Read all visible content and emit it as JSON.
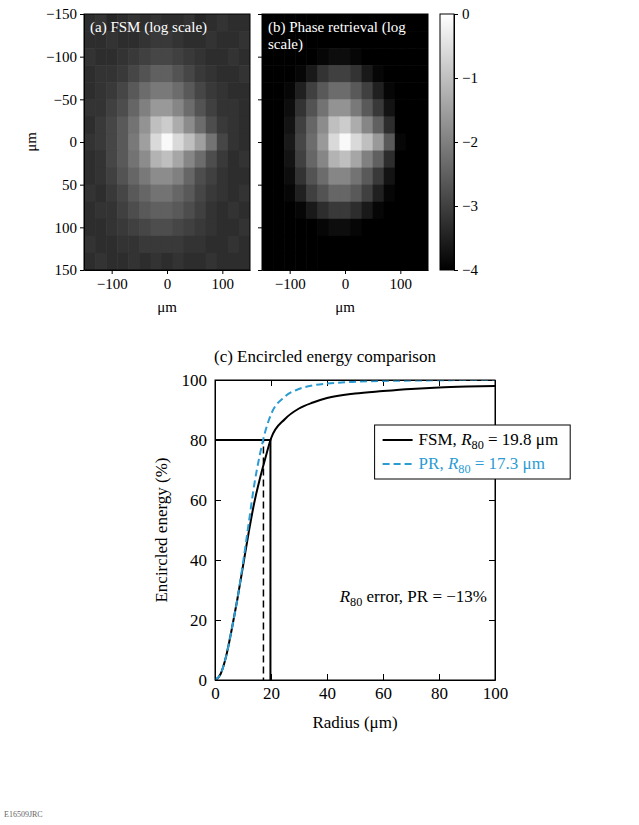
{
  "figure_id": "E16509JRC",
  "chart_data": [
    {
      "type": "heatmap",
      "title": "(a) FSM (log scale)",
      "x_label": "μm",
      "y_label": "μm",
      "xlim": [
        -150,
        150
      ],
      "ylim": [
        -150,
        150
      ],
      "xticks": [
        {
          "value": -100,
          "label": "−100"
        },
        0,
        100
      ],
      "yticks": [
        {
          "value": -150,
          "label": "−150"
        },
        {
          "value": -100,
          "label": "−100"
        },
        {
          "value": -50,
          "label": "−50"
        },
        0,
        50,
        100,
        150
      ],
      "x_edges": [
        -150,
        -130,
        -110,
        -90,
        -70,
        -50,
        -30,
        -10,
        10,
        30,
        50,
        70,
        90,
        110,
        130,
        150
      ],
      "y_edges": [
        -150,
        -130,
        -110,
        -90,
        -70,
        -50,
        -30,
        -10,
        10,
        30,
        50,
        70,
        90,
        110,
        130,
        150
      ],
      "cells": [
        [
          -3.3,
          -3.2,
          -3.4,
          -3.3,
          -3.2,
          -3.3,
          -3.2,
          -3.3,
          -3.3,
          -3.2,
          -3.4,
          -3.3,
          -3.2,
          -3.3,
          -3.3
        ],
        [
          -3.3,
          -3.3,
          -3.2,
          -3.3,
          -3.3,
          -3.2,
          -3.1,
          -3.1,
          -3.2,
          -3.3,
          -3.3,
          -3.2,
          -3.3,
          -3.3,
          -3.2
        ],
        [
          -3.2,
          -3.3,
          -3.3,
          -3.2,
          -3.1,
          -3.0,
          -2.9,
          -2.9,
          -3.0,
          -3.1,
          -3.2,
          -3.3,
          -3.3,
          -3.2,
          -3.3
        ],
        [
          -3.3,
          -3.2,
          -3.2,
          -3.1,
          -2.9,
          -2.7,
          -2.5,
          -2.5,
          -2.7,
          -2.9,
          -3.1,
          -3.2,
          -3.3,
          -3.3,
          -3.2
        ],
        [
          -3.3,
          -3.2,
          -3.1,
          -2.9,
          -2.6,
          -2.3,
          -2.1,
          -2.1,
          -2.3,
          -2.6,
          -2.9,
          -3.1,
          -3.2,
          -3.3,
          -3.3
        ],
        [
          -3.2,
          -3.2,
          -3.0,
          -2.8,
          -2.4,
          -2.0,
          -1.6,
          -1.6,
          -1.9,
          -2.3,
          -2.7,
          -3.0,
          -3.2,
          -3.2,
          -3.3
        ],
        [
          -3.3,
          -3.1,
          -2.9,
          -2.6,
          -2.2,
          -1.7,
          -1.0,
          -0.8,
          -1.3,
          -1.8,
          -2.3,
          -2.8,
          -3.1,
          -3.2,
          -3.3
        ],
        [
          -3.2,
          -3.1,
          -2.9,
          -2.6,
          -2.1,
          -1.5,
          -0.6,
          -0.1,
          -0.6,
          -1.0,
          -1.5,
          -2.2,
          -2.9,
          -3.2,
          -3.3
        ],
        [
          -3.3,
          -3.2,
          -2.9,
          -2.6,
          -2.2,
          -1.8,
          -1.2,
          -1.0,
          -1.4,
          -1.9,
          -2.3,
          -2.8,
          -3.1,
          -3.3,
          -3.2
        ],
        [
          -3.3,
          -3.2,
          -3.0,
          -2.7,
          -2.4,
          -2.1,
          -1.8,
          -1.8,
          -2.0,
          -2.4,
          -2.8,
          -3.0,
          -3.2,
          -3.3,
          -3.3
        ],
        [
          -3.2,
          -3.3,
          -3.1,
          -2.9,
          -2.6,
          -2.4,
          -2.2,
          -2.2,
          -2.4,
          -2.6,
          -2.9,
          -3.1,
          -3.2,
          -3.3,
          -3.2
        ],
        [
          -3.3,
          -3.2,
          -3.2,
          -3.0,
          -2.8,
          -2.6,
          -2.5,
          -2.5,
          -2.6,
          -2.8,
          -3.0,
          -3.2,
          -3.3,
          -3.2,
          -3.3
        ],
        [
          -3.3,
          -3.3,
          -3.2,
          -3.1,
          -3.0,
          -2.9,
          -2.8,
          -2.8,
          -2.9,
          -3.0,
          -3.1,
          -3.2,
          -3.3,
          -3.3,
          -3.2
        ],
        [
          -3.2,
          -3.3,
          -3.3,
          -3.2,
          -3.2,
          -3.1,
          -3.1,
          -3.1,
          -3.1,
          -3.2,
          -3.2,
          -3.3,
          -3.3,
          -3.2,
          -3.3
        ],
        [
          -3.3,
          -3.2,
          -3.3,
          -3.3,
          -3.2,
          -3.3,
          -3.2,
          -3.3,
          -3.2,
          -3.3,
          -3.3,
          -3.2,
          -3.3,
          -3.3,
          -3.3
        ]
      ]
    },
    {
      "type": "heatmap",
      "title": "(b) Phase retrieval (log scale)",
      "x_label": "μm",
      "tick_labels": "x",
      "xlim": [
        -150,
        150
      ],
      "ylim": [
        -150,
        150
      ],
      "xticks": [
        {
          "value": -100,
          "label": "−100"
        },
        0,
        100
      ],
      "yticks": [
        -150,
        -100,
        -50,
        0,
        50,
        100,
        150
      ],
      "x_edges": [
        -150,
        -130,
        -110,
        -90,
        -70,
        -50,
        -30,
        -10,
        10,
        30,
        50,
        70,
        90,
        110,
        130,
        150
      ],
      "y_edges": [
        -150,
        -130,
        -110,
        -90,
        -70,
        -50,
        -30,
        -10,
        10,
        30,
        50,
        70,
        90,
        110,
        130,
        150
      ],
      "cells": [
        [
          -4,
          -4,
          -4,
          -4,
          -4,
          -4,
          -4,
          -4,
          -4,
          -4,
          -4,
          -4,
          -4,
          -4,
          -4
        ],
        [
          -4,
          -4,
          -4,
          -4,
          -4,
          -4,
          -4,
          -4,
          -4,
          -4,
          -4,
          -4,
          -4,
          -4,
          -4
        ],
        [
          -4,
          -4,
          -4,
          -4,
          -4,
          -3.9,
          -3.8,
          -3.8,
          -3.9,
          -4,
          -4,
          -4,
          -4,
          -4,
          -4
        ],
        [
          -4,
          -4,
          -4,
          -3.9,
          -3.6,
          -3.2,
          -3.0,
          -3.0,
          -3.2,
          -3.6,
          -3.9,
          -4,
          -4,
          -4,
          -4
        ],
        [
          -4,
          -4,
          -3.9,
          -3.5,
          -3.0,
          -2.6,
          -2.3,
          -2.3,
          -2.6,
          -3.0,
          -3.5,
          -3.9,
          -4,
          -4,
          -4
        ],
        [
          -4,
          -4,
          -3.8,
          -3.2,
          -2.7,
          -2.2,
          -1.7,
          -1.7,
          -2.1,
          -2.6,
          -3.1,
          -3.7,
          -4,
          -4,
          -4
        ],
        [
          -4,
          -4,
          -3.7,
          -3.0,
          -2.4,
          -1.8,
          -1.0,
          -0.8,
          -1.3,
          -1.9,
          -2.5,
          -3.3,
          -4,
          -4,
          -4
        ],
        [
          -4,
          -4,
          -3.6,
          -2.9,
          -2.3,
          -1.6,
          -0.6,
          -0.1,
          -0.6,
          -1.0,
          -1.6,
          -2.6,
          -3.9,
          -4,
          -4
        ],
        [
          -4,
          -4,
          -3.7,
          -3.0,
          -2.4,
          -1.9,
          -1.2,
          -1.0,
          -1.4,
          -2.0,
          -2.5,
          -3.3,
          -4,
          -4,
          -4
        ],
        [
          -4,
          -4,
          -3.8,
          -3.2,
          -2.7,
          -2.3,
          -1.9,
          -1.9,
          -2.2,
          -2.6,
          -3.1,
          -3.7,
          -4,
          -4,
          -4
        ],
        [
          -4,
          -4,
          -3.9,
          -3.5,
          -3.0,
          -2.7,
          -2.4,
          -2.4,
          -2.6,
          -3.0,
          -3.5,
          -3.9,
          -4,
          -4,
          -4
        ],
        [
          -4,
          -4,
          -4,
          -3.9,
          -3.6,
          -3.3,
          -3.1,
          -3.1,
          -3.3,
          -3.6,
          -3.9,
          -4,
          -4,
          -4,
          -4
        ],
        [
          -4,
          -4,
          -4,
          -4,
          -4,
          -3.9,
          -3.8,
          -3.8,
          -3.9,
          -4,
          -4,
          -4,
          -4,
          -4,
          -4
        ],
        [
          -4,
          -4,
          -4,
          -4,
          -4,
          -4,
          -4,
          -4,
          -4,
          -4,
          -4,
          -4,
          -4,
          -4,
          -4
        ],
        [
          -4,
          -4,
          -4,
          -4,
          -4,
          -4,
          -4,
          -4,
          -4,
          -4,
          -4,
          -4,
          -4,
          -4,
          -4
        ]
      ],
      "colorbar_lim": [
        -4,
        0
      ],
      "colorbar_ticks": [
        0,
        {
          "value": -1,
          "label": "−1"
        },
        {
          "value": -2,
          "label": "−2"
        },
        {
          "value": -3,
          "label": "−3"
        },
        {
          "value": -4,
          "label": "−4"
        }
      ]
    },
    {
      "type": "line",
      "title": "(c) Encircled energy comparison",
      "x_label": "Radius (μm)",
      "y_label": "Encircled energy (%)",
      "xlim": [
        0,
        100
      ],
      "ylim": [
        0,
        100
      ],
      "xticks": [
        0,
        20,
        40,
        60,
        80,
        100
      ],
      "yticks": [
        0,
        20,
        40,
        60,
        80,
        100
      ],
      "legend": "right",
      "x": [
        0,
        2,
        4,
        6,
        8,
        10,
        12,
        14,
        16,
        18,
        20,
        25,
        30,
        35,
        40,
        50,
        60,
        70,
        80,
        90,
        100
      ],
      "series": [
        {
          "name": "FSM, R80 = 19.8 μm",
          "color": "#000000",
          "line_style": "solid",
          "r80": 19.8,
          "values": [
            0,
            2,
            8,
            17,
            27,
            38,
            49,
            59,
            67,
            74,
            80.5,
            87,
            90.5,
            92.5,
            94,
            95.5,
            96.3,
            97,
            97.5,
            97.8,
            98
          ]
        },
        {
          "name": "PR, R80 = 17.3 μm",
          "color": "#2b9bd3",
          "line_style": "dashed",
          "r80": 17.3,
          "values": [
            0,
            2,
            8,
            17,
            27,
            39,
            52,
            65,
            75,
            83,
            88.5,
            94.5,
            97,
            98.2,
            98.8,
            99.4,
            99.7,
            99.8,
            99.9,
            100,
            100
          ]
        }
      ],
      "r80_level": 80,
      "annotation": "R80 error, PR = −13%"
    }
  ]
}
